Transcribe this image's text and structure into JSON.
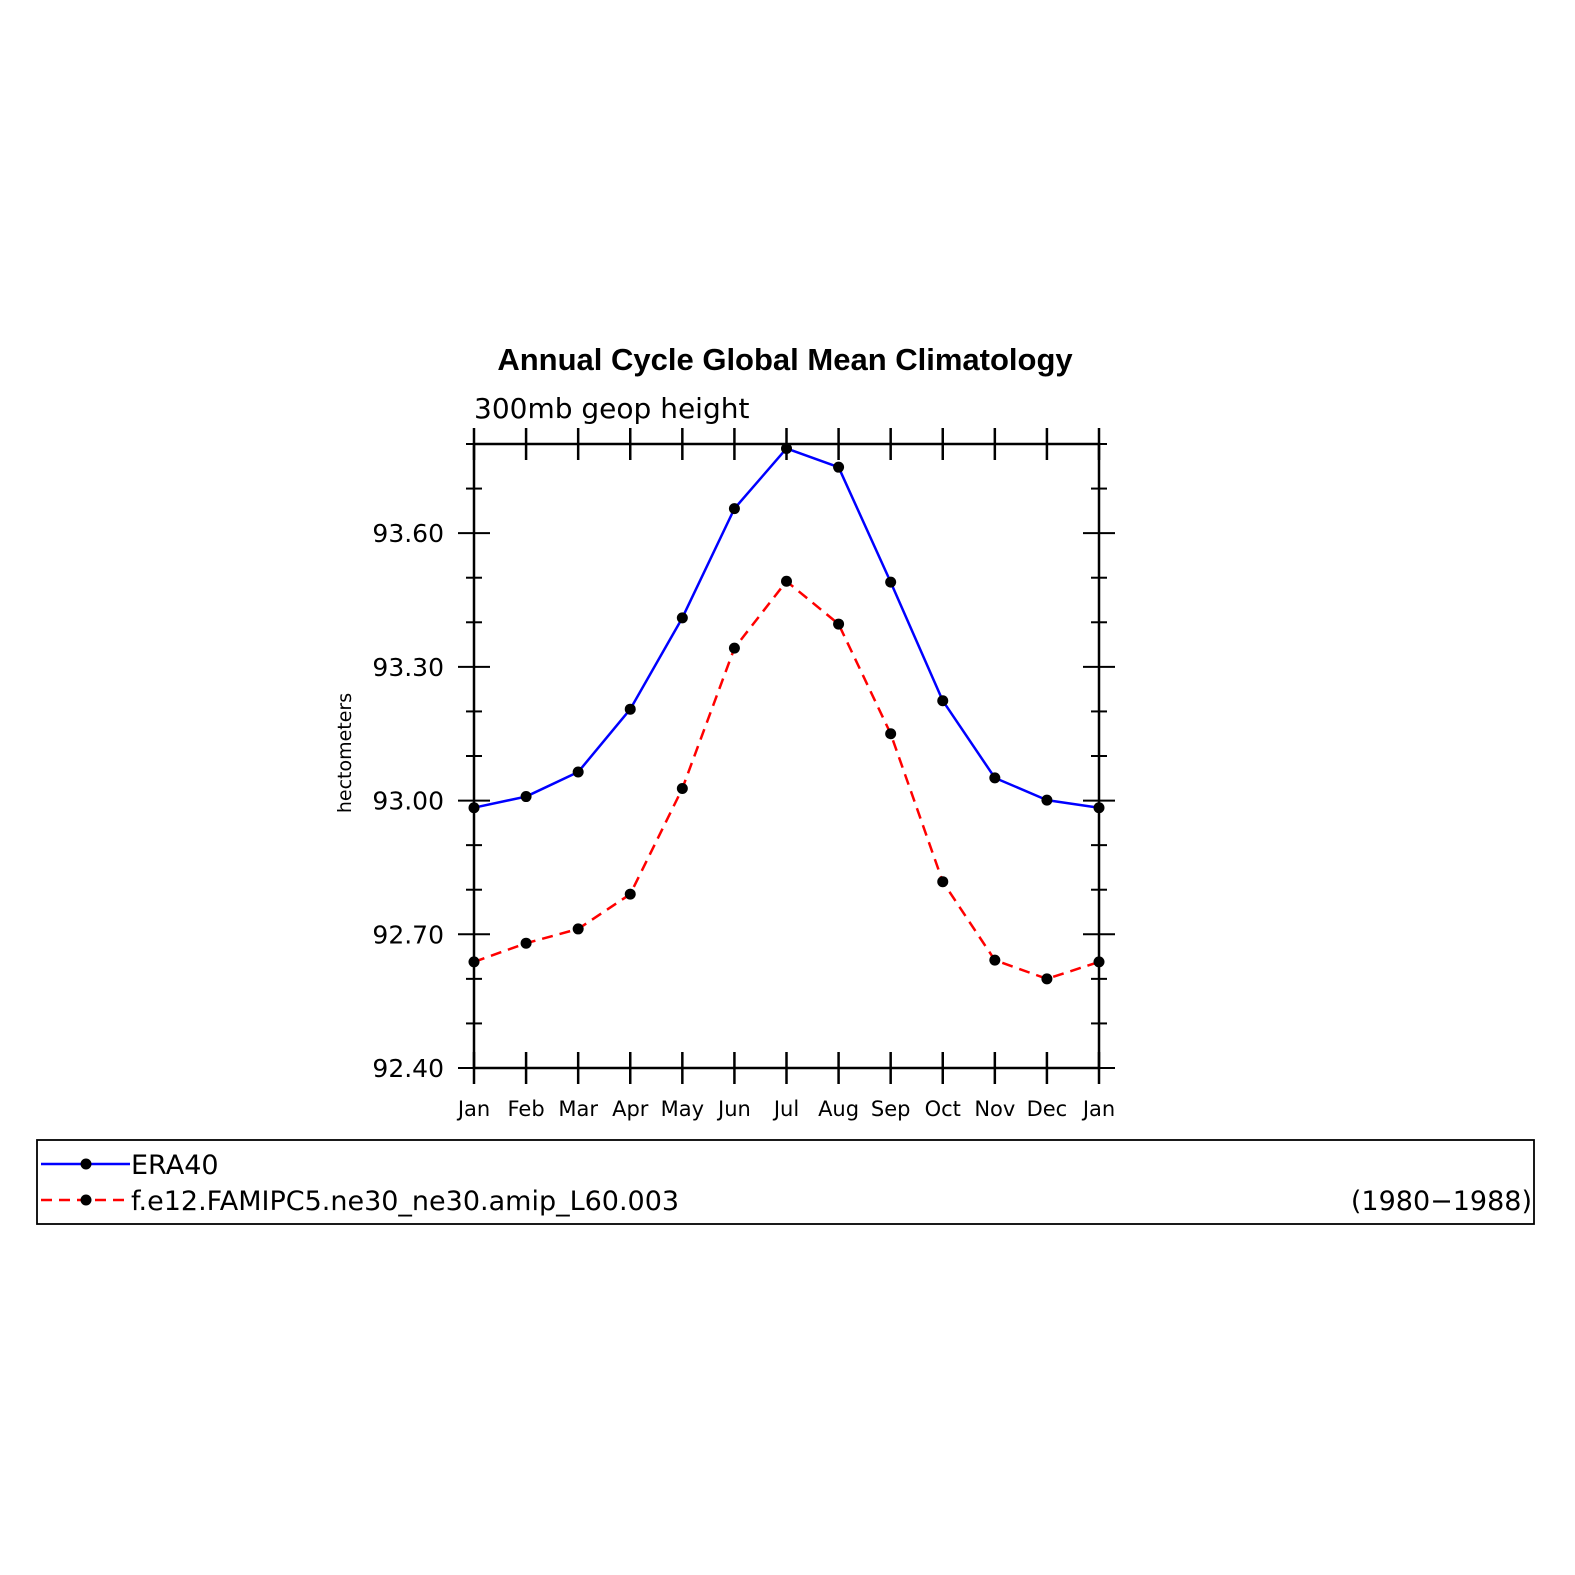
{
  "chart_data": {
    "type": "line",
    "title": "Annual Cycle Global Mean Climatology",
    "subtitle": "300mb geop height",
    "ylabel": "hectometers",
    "ylim": [
      92.4,
      93.8
    ],
    "yticks": [
      "93.60",
      "93.30",
      "93.00",
      "92.70",
      "92.40"
    ],
    "ytick_values": [
      93.6,
      93.3,
      93.0,
      92.7,
      92.4
    ],
    "categories": [
      "Jan",
      "Feb",
      "Mar",
      "Apr",
      "May",
      "Jun",
      "Jul",
      "Aug",
      "Sep",
      "Oct",
      "Nov",
      "Dec",
      "Jan"
    ],
    "series": [
      {
        "name": "ERA40",
        "color": "#0000ff",
        "dashed": false,
        "values": [
          92.984,
          93.009,
          93.064,
          93.205,
          93.41,
          93.655,
          93.79,
          93.748,
          93.49,
          93.224,
          93.051,
          93.001,
          92.984
        ]
      },
      {
        "name": "f.e12.FAMIPC5.ne30_ne30.amip_L60.003",
        "color": "#ff0000",
        "dashed": true,
        "values": [
          92.638,
          92.68,
          92.712,
          92.79,
          93.027,
          93.342,
          93.492,
          93.396,
          93.15,
          92.818,
          92.642,
          92.6,
          92.638
        ]
      }
    ],
    "legend_note": "(1980−1988)",
    "legend_position": "bottom"
  }
}
